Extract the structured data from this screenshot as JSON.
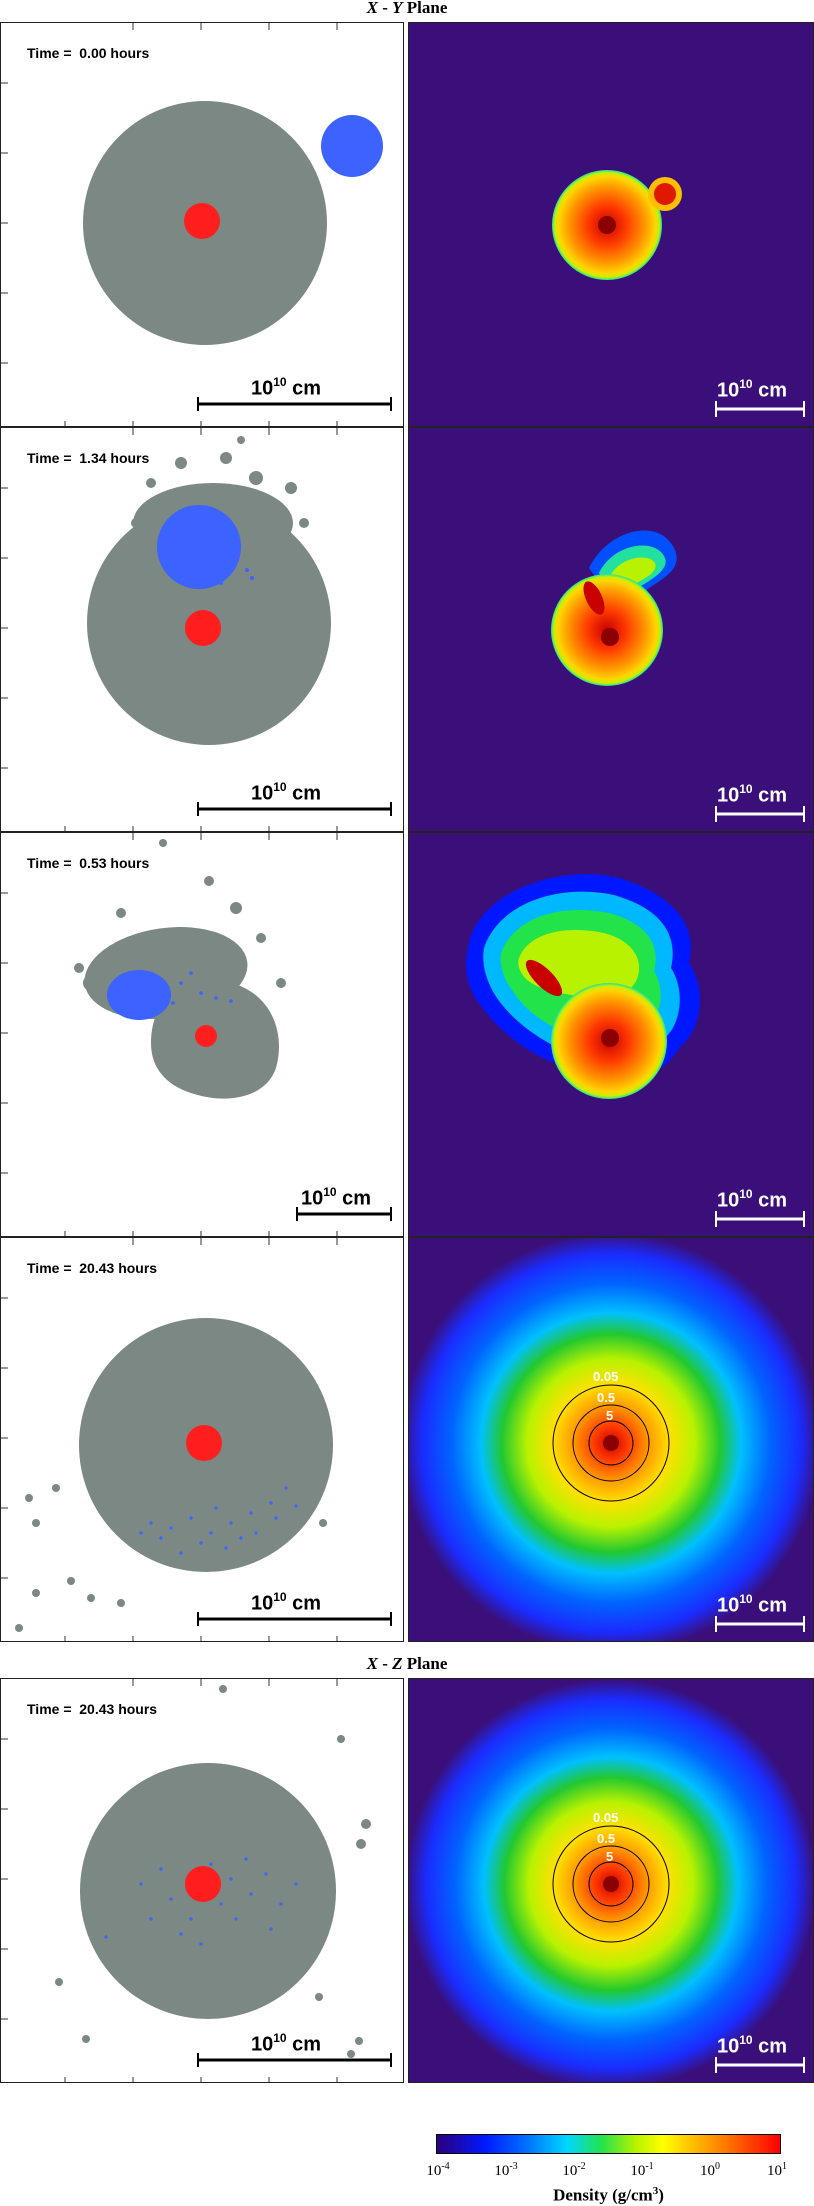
{
  "planes": {
    "xy": {
      "var1": "X",
      "sep": " - ",
      "var2": "Y",
      "suffix": " Plane"
    },
    "xz": {
      "var1": "X",
      "sep": " - ",
      "var2": "Z",
      "suffix": " Plane"
    }
  },
  "panels": [
    {
      "time": "Time =  0.00 hours",
      "scale_label": "cm",
      "scale_exponent": "10",
      "scale_base": "10"
    },
    {
      "time": "Time =  1.34 hours",
      "scale_label": "cm",
      "scale_exponent": "10",
      "scale_base": "10"
    },
    {
      "time": "Time =  0.53 hours",
      "scale_label": "cm",
      "scale_exponent": "10",
      "scale_base": "10"
    },
    {
      "time": "Time =  20.43 hours",
      "scale_label": "cm",
      "scale_exponent": "10",
      "scale_base": "10",
      "contours": [
        "0.05",
        "0.5",
        "5"
      ]
    },
    {
      "time": "Time =  20.43 hours",
      "scale_label": "cm",
      "scale_exponent": "10",
      "scale_base": "10",
      "contours": [
        "0.05",
        "0.5",
        "5"
      ]
    }
  ],
  "colorbar": {
    "label": "Density (g/cm",
    "label_exp": "3",
    "label_end": ")",
    "ticks": [
      {
        "base": "10",
        "exp": "-4"
      },
      {
        "base": "10",
        "exp": "-3"
      },
      {
        "base": "10",
        "exp": "-2"
      },
      {
        "base": "10",
        "exp": "-1"
      },
      {
        "base": "10",
        "exp": "0"
      },
      {
        "base": "10",
        "exp": "1"
      }
    ]
  },
  "colors": {
    "gas_particles": "#7c8884",
    "core": "#ff1e1e",
    "companion": "#3c62ff",
    "background_density": "#3a0f79"
  }
}
